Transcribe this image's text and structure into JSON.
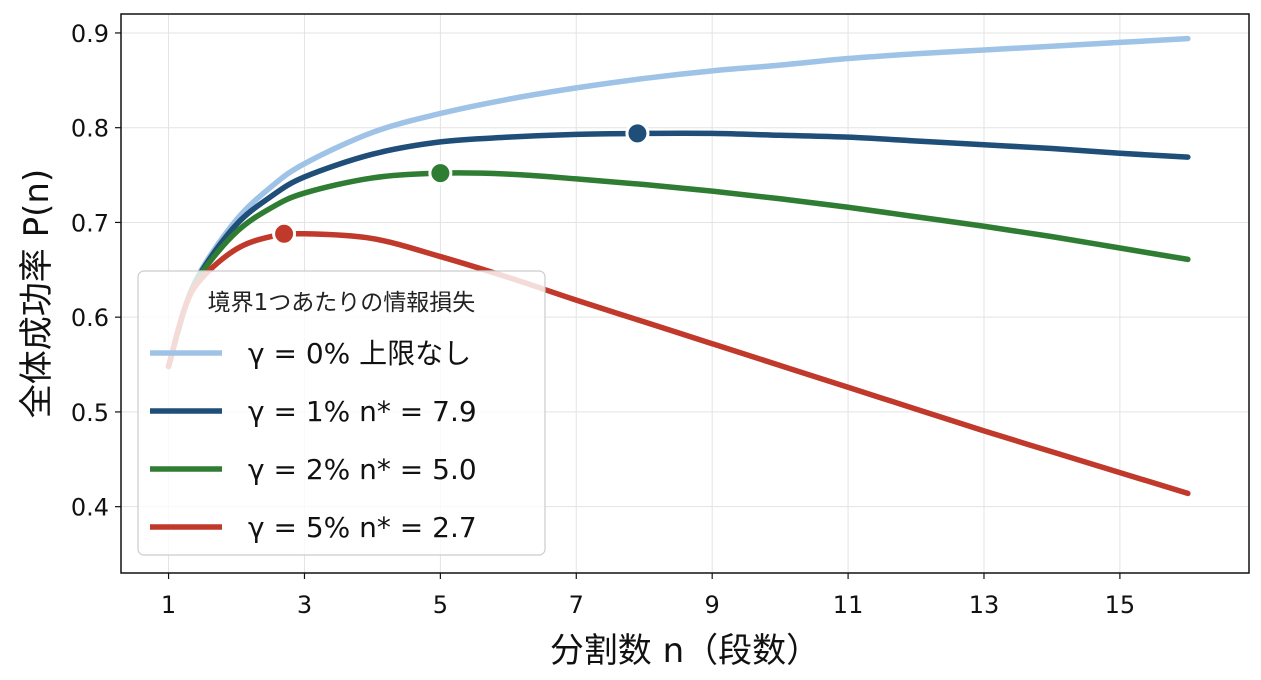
{
  "chart_data": {
    "type": "line",
    "title": "",
    "xlabel": "分割数 n（段数）",
    "ylabel": "全体成功率 P(n)",
    "xlim": [
      0.3,
      16.9
    ],
    "ylim": [
      0.33,
      0.92
    ],
    "xticks": [
      1,
      3,
      5,
      7,
      9,
      11,
      13,
      15
    ],
    "yticks": [
      0.4,
      0.5,
      0.6,
      0.7,
      0.8,
      0.9
    ],
    "grid": true,
    "legend_position": "lower-left",
    "legend_title": "境界1つあたりの情報損失",
    "x": [
      1,
      1.25,
      1.5,
      2,
      2.5,
      3,
      4,
      5,
      6,
      7,
      8,
      9,
      10,
      11,
      12,
      13,
      14,
      15,
      16
    ],
    "series": [
      {
        "name": "γ = 0%",
        "legend_label": "γ = 0%   上限なし",
        "color": "#9ec3e6",
        "values": [
          0.548,
          0.612,
          0.652,
          0.703,
          0.737,
          0.762,
          0.795,
          0.815,
          0.83,
          0.842,
          0.852,
          0.86,
          0.866,
          0.873,
          0.878,
          0.882,
          0.886,
          0.89,
          0.894
        ]
      },
      {
        "name": "γ = 1%",
        "legend_label": "γ = 1%   n* = 7.9",
        "color": "#1f4e79",
        "values": [
          0.548,
          0.612,
          0.65,
          0.698,
          0.727,
          0.748,
          0.772,
          0.785,
          0.79,
          0.793,
          0.794,
          0.794,
          0.792,
          0.79,
          0.786,
          0.782,
          0.778,
          0.773,
          0.769
        ],
        "optimum": {
          "x": 7.9,
          "y": 0.794
        }
      },
      {
        "name": "γ = 2%",
        "legend_label": "γ = 2%   n* = 5.0",
        "color": "#2e7d32",
        "values": [
          0.548,
          0.612,
          0.648,
          0.69,
          0.715,
          0.731,
          0.747,
          0.752,
          0.751,
          0.746,
          0.74,
          0.733,
          0.725,
          0.716,
          0.706,
          0.696,
          0.685,
          0.673,
          0.661
        ],
        "optimum": {
          "x": 5.0,
          "y": 0.752
        }
      },
      {
        "name": "γ = 5%",
        "legend_label": "γ = 5%   n* = 2.7",
        "color": "#c0392b",
        "values": [
          0.548,
          0.612,
          0.642,
          0.672,
          0.685,
          0.688,
          0.683,
          0.664,
          0.642,
          0.618,
          0.595,
          0.572,
          0.549,
          0.526,
          0.503,
          0.48,
          0.458,
          0.436,
          0.414
        ],
        "optimum": {
          "x": 2.7,
          "y": 0.688
        }
      }
    ]
  }
}
